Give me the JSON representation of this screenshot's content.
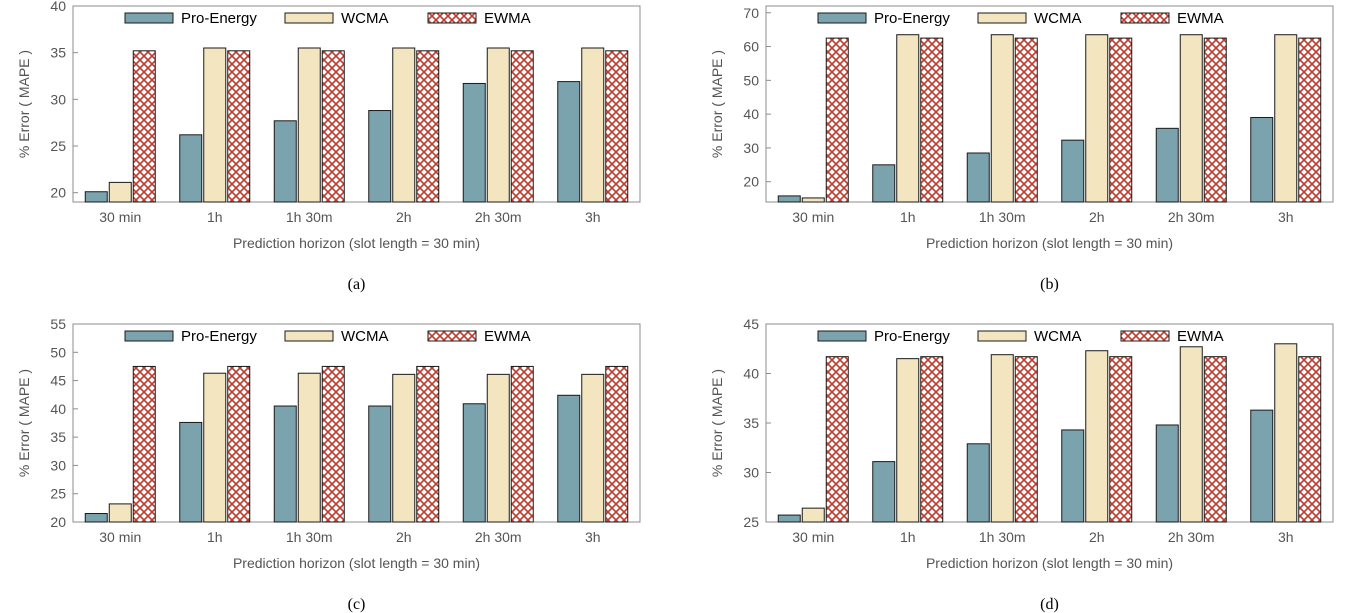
{
  "series_styles": {
    "Pro-Energy": {
      "fill": "#7aa3ae",
      "pattern": false
    },
    "WCMA": {
      "fill": "#f3e5bf",
      "pattern": false
    },
    "EWMA": {
      "fill": "#ffffff",
      "pattern": true,
      "pattern_color": "#c0392b"
    }
  },
  "chart_data": [
    {
      "type": "bar",
      "caption": "(a)",
      "categories": [
        "30 min",
        "1h",
        "1h 30m",
        "2h",
        "2h 30m",
        "3h"
      ],
      "xlabel": "Prediction horizon  (slot length = 30 min)",
      "ylabel": "% Error ( MAPE )",
      "ylim": [
        19,
        40
      ],
      "yticks": [
        20,
        25,
        30,
        35,
        40
      ],
      "series": [
        {
          "name": "Pro-Energy",
          "values": [
            20.1,
            26.2,
            27.7,
            28.8,
            31.7,
            31.9
          ]
        },
        {
          "name": "WCMA",
          "values": [
            21.1,
            35.5,
            35.5,
            35.5,
            35.5,
            35.5
          ]
        },
        {
          "name": "EWMA",
          "values": [
            35.2,
            35.2,
            35.2,
            35.2,
            35.2,
            35.2
          ]
        }
      ]
    },
    {
      "type": "bar",
      "caption": "(b)",
      "categories": [
        "30 min",
        "1h",
        "1h 30m",
        "2h",
        "2h 30m",
        "3h"
      ],
      "xlabel": "Prediction horizon  (slot length = 30 min)",
      "ylabel": "% Error ( MAPE )",
      "ylim": [
        14,
        72
      ],
      "yticks": [
        20,
        30,
        40,
        50,
        60,
        70
      ],
      "series": [
        {
          "name": "Pro-Energy",
          "values": [
            15.8,
            25,
            28.5,
            32.3,
            35.8,
            39
          ]
        },
        {
          "name": "WCMA",
          "values": [
            15.2,
            63.5,
            63.5,
            63.5,
            63.5,
            63.5
          ]
        },
        {
          "name": "EWMA",
          "values": [
            62.5,
            62.5,
            62.5,
            62.5,
            62.5,
            62.5
          ]
        }
      ]
    },
    {
      "type": "bar",
      "caption": "(c)",
      "categories": [
        "30 min",
        "1h",
        "1h 30m",
        "2h",
        "2h 30m",
        "3h"
      ],
      "xlabel": "Prediction horizon  (slot length = 30 min)",
      "ylabel": "% Error ( MAPE )",
      "ylim": [
        20,
        55
      ],
      "yticks": [
        20,
        25,
        30,
        35,
        40,
        45,
        50,
        55
      ],
      "series": [
        {
          "name": "Pro-Energy",
          "values": [
            21.5,
            37.6,
            40.5,
            40.5,
            40.9,
            42.4
          ]
        },
        {
          "name": "WCMA",
          "values": [
            23.2,
            46.3,
            46.3,
            46.1,
            46.1,
            46.1
          ]
        },
        {
          "name": "EWMA",
          "values": [
            47.5,
            47.5,
            47.5,
            47.5,
            47.5,
            47.5
          ]
        }
      ]
    },
    {
      "type": "bar",
      "caption": "(d)",
      "categories": [
        "30 min",
        "1h",
        "1h 30m",
        "2h",
        "2h 30m",
        "3h"
      ],
      "xlabel": "Prediction horizon  (slot length = 30 min)",
      "ylabel": "% Error ( MAPE )",
      "ylim": [
        25,
        45
      ],
      "yticks": [
        25,
        30,
        35,
        40,
        45
      ],
      "series": [
        {
          "name": "Pro-Energy",
          "values": [
            25.7,
            31.1,
            32.9,
            34.3,
            34.8,
            36.3
          ]
        },
        {
          "name": "WCMA",
          "values": [
            26.4,
            41.5,
            41.9,
            42.3,
            42.7,
            43
          ]
        },
        {
          "name": "EWMA",
          "values": [
            41.7,
            41.7,
            41.7,
            41.7,
            41.7,
            41.7
          ]
        }
      ]
    }
  ]
}
